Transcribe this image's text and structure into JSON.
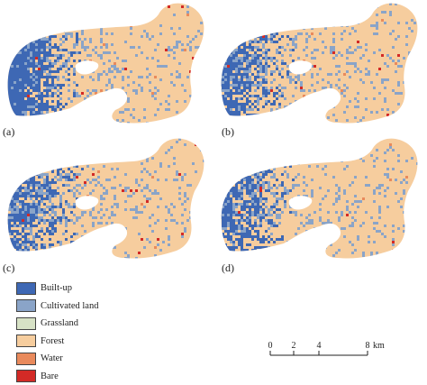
{
  "panels": [
    {
      "label": "(a)",
      "builtup_extent": 1.0
    },
    {
      "label": "(b)",
      "builtup_extent": 0.8
    },
    {
      "label": "(c)",
      "builtup_extent": 0.7
    },
    {
      "label": "(d)",
      "builtup_extent": 0.75
    }
  ],
  "legend": {
    "items": [
      {
        "label": "Built-up",
        "color": "#3e68b4"
      },
      {
        "label": "Cultivated land",
        "color": "#8aa4c8"
      },
      {
        "label": "Grassland",
        "color": "#d7e2c6"
      },
      {
        "label": "Forest",
        "color": "#f6cd9e"
      },
      {
        "label": "Water",
        "color": "#e98a5c"
      },
      {
        "label": "Bare",
        "color": "#d32a26"
      }
    ]
  },
  "scale": {
    "ticks": [
      "0",
      "2",
      "4",
      "8"
    ],
    "unit": "km"
  }
}
